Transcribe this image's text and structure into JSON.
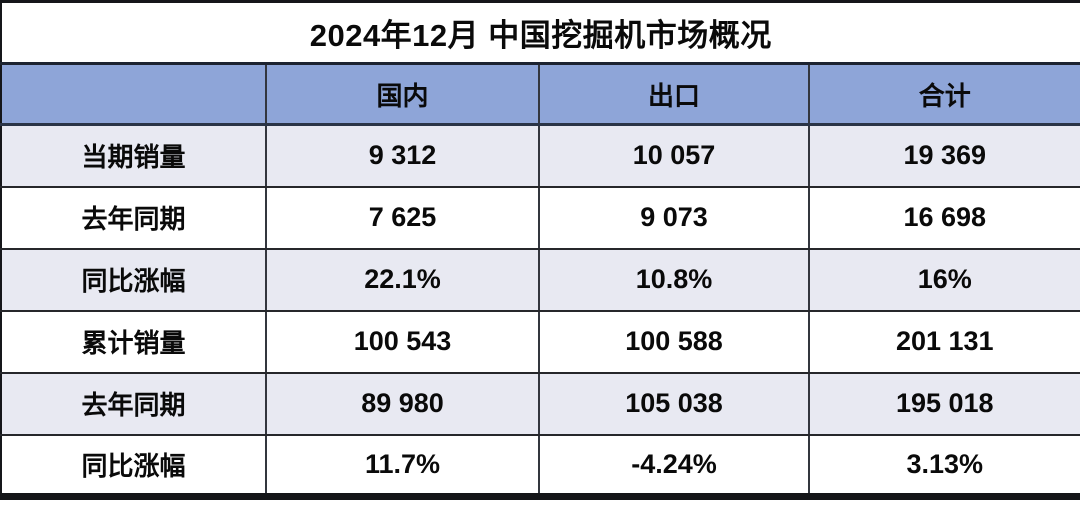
{
  "colors": {
    "header_bg": "#8ea5d8",
    "alt_row_bg": "#e8e9f2",
    "plain_row_bg": "#ffffff",
    "border_dark": "#15161a",
    "header_divider": "#2a3447",
    "text": "#0a0a0a"
  },
  "chart_data": {
    "type": "table",
    "title": "2024年12月 中国挖掘机市场概况",
    "columns": [
      "",
      "国内",
      "出口",
      "合计"
    ],
    "rows": [
      {
        "label": "当期销量",
        "values": [
          "9 312",
          "10 057",
          "19 369"
        ]
      },
      {
        "label": "去年同期",
        "values": [
          "7 625",
          "9 073",
          "16 698"
        ]
      },
      {
        "label": "同比涨幅",
        "values": [
          "22.1%",
          "10.8%",
          "16%"
        ]
      },
      {
        "label": "累计销量",
        "values": [
          "100 543",
          "100 588",
          "201 131"
        ]
      },
      {
        "label": "去年同期",
        "values": [
          "89 980",
          "105 038",
          "195 018"
        ]
      },
      {
        "label": "同比涨幅",
        "values": [
          "11.7%",
          "-4.24%",
          "3.13%"
        ]
      }
    ],
    "numeric_rows": [
      {
        "label": "当期销量",
        "domestic": 9312,
        "export": 10057,
        "total": 19369
      },
      {
        "label": "去年同期",
        "domestic": 7625,
        "export": 9073,
        "total": 16698
      },
      {
        "label": "同比涨幅",
        "domestic": "22.1%",
        "export": "10.8%",
        "total": "16%"
      },
      {
        "label": "累计销量",
        "domestic": 100543,
        "export": 100588,
        "total": 201131
      },
      {
        "label": "去年同期",
        "domestic": 89980,
        "export": 105038,
        "total": 195018
      },
      {
        "label": "同比涨幅",
        "domestic": "11.7%",
        "export": "-4.24%",
        "total": "3.13%"
      }
    ]
  }
}
